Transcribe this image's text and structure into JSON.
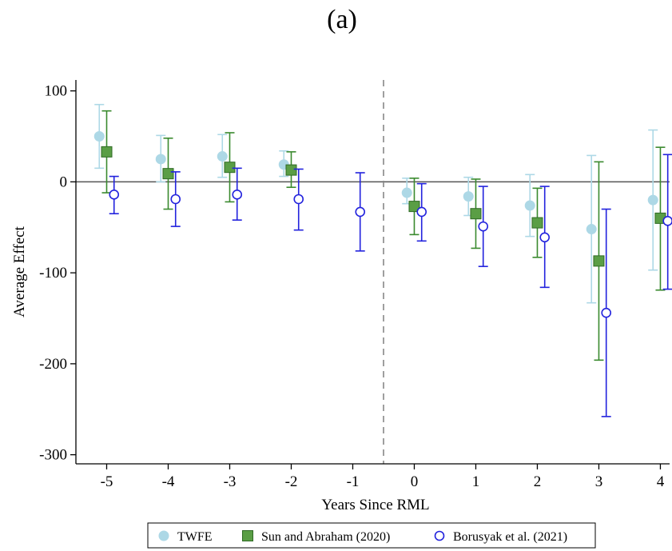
{
  "panel_label": "(a)",
  "colors": {
    "twfe": "#add8e6",
    "sun_abraham": "#3a8a2e",
    "sun_abraham_marker": "#5a9e45",
    "borusyak": "#2222dd",
    "zero_line": "#555555",
    "event_line": "#888888"
  },
  "chart_data": {
    "type": "scatter",
    "title": "",
    "xlabel": "Years Since RML",
    "ylabel": "Average Effect",
    "x_ticks": [
      -5,
      -4,
      -3,
      -2,
      -1,
      0,
      1,
      2,
      3,
      4
    ],
    "y_ticks": [
      100,
      0,
      -100,
      -200,
      -300
    ],
    "xlim": [
      -5.5,
      4.15
    ],
    "ylim": [
      -310,
      112
    ],
    "zero_line": 0,
    "event_line_x": -0.5,
    "grid": false,
    "legend_position": "bottom",
    "series": [
      {
        "name": "TWFE",
        "marker": "filled-circle",
        "offset": -0.12,
        "points": [
          {
            "x": -5,
            "y": 50,
            "lo": 15,
            "hi": 85
          },
          {
            "x": -4,
            "y": 25,
            "lo": 0,
            "hi": 51
          },
          {
            "x": -3,
            "y": 28,
            "lo": 5,
            "hi": 52
          },
          {
            "x": -2,
            "y": 19,
            "lo": 6,
            "hi": 34
          },
          {
            "x": 0,
            "y": -12,
            "lo": -24,
            "hi": 4
          },
          {
            "x": 1,
            "y": -16,
            "lo": -37,
            "hi": 5
          },
          {
            "x": 2,
            "y": -26,
            "lo": -60,
            "hi": 8
          },
          {
            "x": 3,
            "y": -52,
            "lo": -133,
            "hi": 29
          },
          {
            "x": 4,
            "y": -20,
            "lo": -97,
            "hi": 57
          }
        ]
      },
      {
        "name": "Sun and Abraham (2020)",
        "marker": "filled-square",
        "offset": 0.0,
        "points": [
          {
            "x": -5,
            "y": 33,
            "lo": -12,
            "hi": 78
          },
          {
            "x": -4,
            "y": 9,
            "lo": -30,
            "hi": 48
          },
          {
            "x": -3,
            "y": 16,
            "lo": -22,
            "hi": 54
          },
          {
            "x": -2,
            "y": 13,
            "lo": -6,
            "hi": 33
          },
          {
            "x": 0,
            "y": -27,
            "lo": -58,
            "hi": 4
          },
          {
            "x": 1,
            "y": -35,
            "lo": -73,
            "hi": 3
          },
          {
            "x": 2,
            "y": -45,
            "lo": -83,
            "hi": -7
          },
          {
            "x": 3,
            "y": -87,
            "lo": -196,
            "hi": 22
          },
          {
            "x": 4,
            "y": -40,
            "lo": -119,
            "hi": 38
          }
        ]
      },
      {
        "name": "Borusyak et al. (2021)",
        "marker": "hollow-circle",
        "offset": 0.12,
        "points": [
          {
            "x": -5,
            "y": -14,
            "lo": -35,
            "hi": 6
          },
          {
            "x": -4,
            "y": -19,
            "lo": -49,
            "hi": 11
          },
          {
            "x": -3,
            "y": -14,
            "lo": -42,
            "hi": 15
          },
          {
            "x": -2,
            "y": -19,
            "lo": -53,
            "hi": 14
          },
          {
            "x": -1,
            "y": -33,
            "lo": -76,
            "hi": 10
          },
          {
            "x": 0,
            "y": -33,
            "lo": -65,
            "hi": -2
          },
          {
            "x": 1,
            "y": -49,
            "lo": -93,
            "hi": -5
          },
          {
            "x": 2,
            "y": -61,
            "lo": -116,
            "hi": -5
          },
          {
            "x": 3,
            "y": -144,
            "lo": -258,
            "hi": -30
          },
          {
            "x": 4,
            "y": -43,
            "lo": -118,
            "hi": 30
          }
        ]
      }
    ]
  }
}
